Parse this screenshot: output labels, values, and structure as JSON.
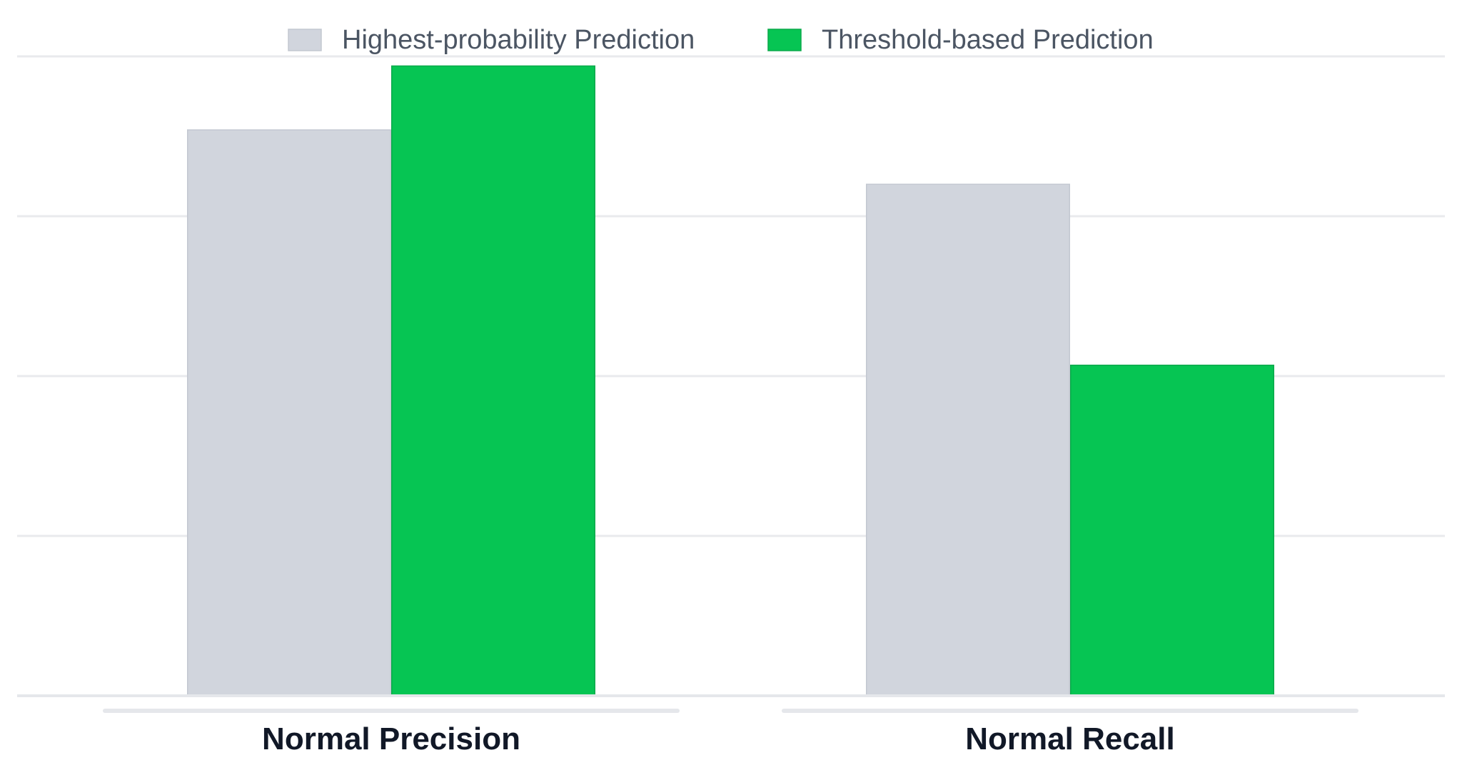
{
  "chart_data": {
    "type": "bar",
    "title": "",
    "xlabel": "",
    "ylabel": "",
    "categories": [
      "Normal Precision",
      "Normal Recall"
    ],
    "series": [
      {
        "name": "Highest-probability Prediction",
        "color": "#d1d5dd",
        "stroke": "#c3c8d1",
        "values": [
          0.885,
          0.8
        ]
      },
      {
        "name": "Threshold-based Prediction",
        "color": "#06c553",
        "stroke": "#0aa94b",
        "values": [
          0.985,
          0.517
        ]
      }
    ],
    "ylim": [
      0,
      1
    ],
    "grid": true,
    "gridlines": [
      0.25,
      0.5,
      0.75,
      1.0
    ],
    "legend_position": "top-center",
    "y_tick_labels_shown": false
  }
}
